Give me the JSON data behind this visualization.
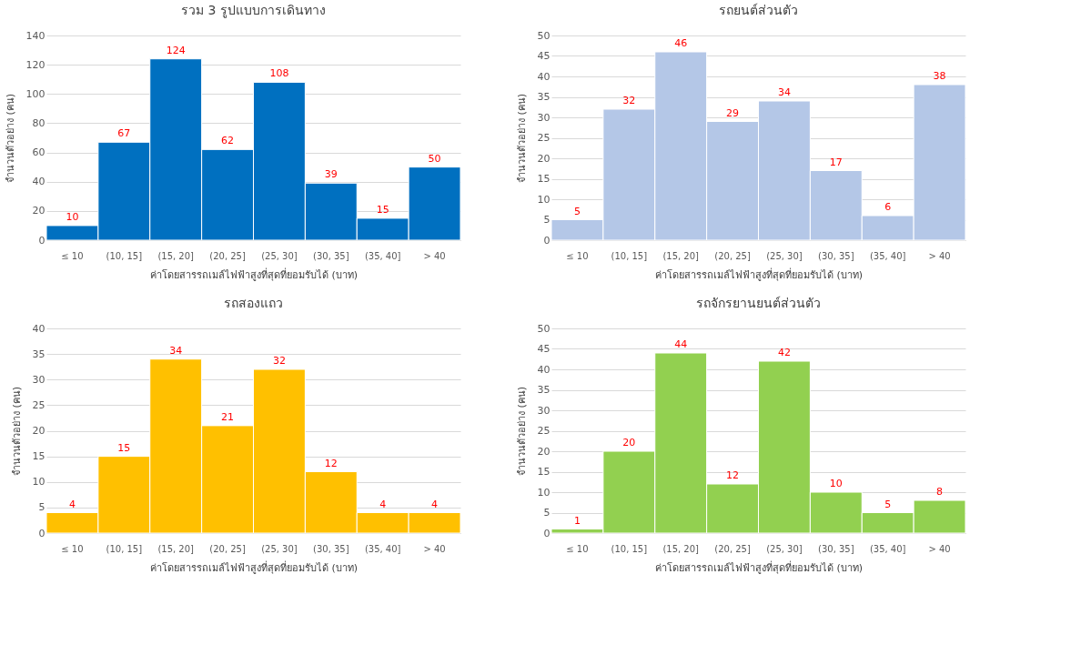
{
  "chart_data": [
    {
      "type": "bar",
      "title": "รวม 3 รูปแบบการเดินทาง",
      "categories": [
        "≤ 10",
        "(10, 15]",
        "(15, 20]",
        "(20, 25]",
        "(25, 30]",
        "(30, 35]",
        "(35, 40]",
        "> 40"
      ],
      "values": [
        10,
        67,
        124,
        62,
        108,
        39,
        15,
        50
      ],
      "color": "#0070c0",
      "ylim": [
        0,
        140
      ],
      "yticks": [
        0,
        20,
        40,
        60,
        80,
        100,
        120,
        140
      ],
      "xlabel": "ค่าโดยสารรถเมล์ไฟฟ้าสูงที่สุดที่ยอมรับได้ (บาท)",
      "ylabel": "จำนวนตัวอย่าง (คน)",
      "data_labels": true,
      "grid": "y"
    },
    {
      "type": "bar",
      "title": "รถยนต์ส่วนตัว",
      "categories": [
        "≤ 10",
        "(10, 15]",
        "(15, 20]",
        "(20, 25]",
        "(25, 30]",
        "(30, 35]",
        "(35, 40]",
        "> 40"
      ],
      "values": [
        5,
        32,
        46,
        29,
        34,
        17,
        6,
        38
      ],
      "color": "#b4c7e7",
      "ylim": [
        0,
        50
      ],
      "yticks": [
        0,
        5,
        10,
        15,
        20,
        25,
        30,
        35,
        40,
        45,
        50
      ],
      "xlabel": "ค่าโดยสารรถเมล์ไฟฟ้าสูงที่สุดที่ยอมรับได้ (บาท)",
      "ylabel": "จำนวนตัวอย่าง (คน)",
      "data_labels": true,
      "grid": "y"
    },
    {
      "type": "bar",
      "title": "รถสองแถว",
      "categories": [
        "≤ 10",
        "(10, 15]",
        "(15, 20]",
        "(20, 25]",
        "(25, 30]",
        "(30, 35]",
        "(35, 40]",
        "> 40"
      ],
      "values": [
        4,
        15,
        34,
        21,
        32,
        12,
        4,
        4
      ],
      "color": "#ffc000",
      "ylim": [
        0,
        40
      ],
      "yticks": [
        0,
        5,
        10,
        15,
        20,
        25,
        30,
        35,
        40
      ],
      "xlabel": "ค่าโดยสารรถเมล์ไฟฟ้าสูงที่สุดที่ยอมรับได้ (บาท)",
      "ylabel": "จำนวนตัวอย่าง (คน)",
      "data_labels": true,
      "grid": "y"
    },
    {
      "type": "bar",
      "title": "รถจักรยานยนต์ส่วนตัว",
      "categories": [
        "≤ 10",
        "(10, 15]",
        "(15, 20]",
        "(20, 25]",
        "(25, 30]",
        "(30, 35]",
        "(35, 40]",
        "> 40"
      ],
      "values": [
        1,
        20,
        44,
        12,
        42,
        10,
        5,
        8
      ],
      "color": "#92d050",
      "ylim": [
        0,
        50
      ],
      "yticks": [
        0,
        5,
        10,
        15,
        20,
        25,
        30,
        35,
        40,
        45,
        50
      ],
      "xlabel": "ค่าโดยสารรถเมล์ไฟฟ้าสูงที่สุดที่ยอมรับได้ (บาท)",
      "ylabel": "จำนวนตัวอย่าง (คน)",
      "data_labels": true,
      "grid": "y"
    }
  ]
}
